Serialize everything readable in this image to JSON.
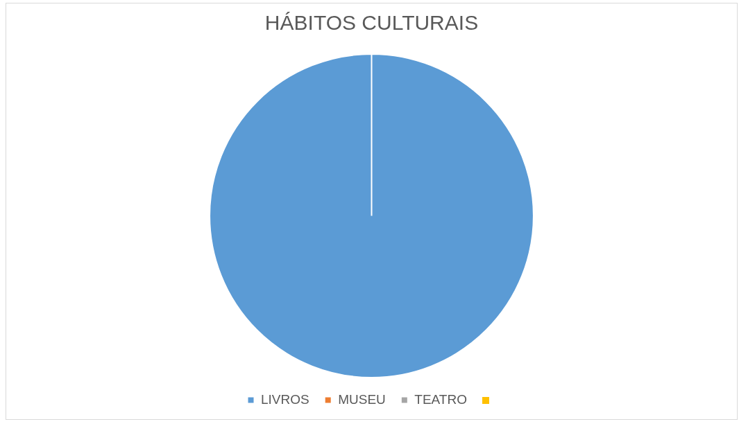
{
  "chart_data": {
    "type": "pie",
    "title": "HÁBITOS CULTURAIS",
    "categories": [
      "LIVROS",
      "MUSEU",
      "TEATRO",
      null
    ],
    "values": [
      100,
      0,
      0,
      0
    ],
    "colors": [
      "#5b9bd5",
      "#ed7d31",
      "#a5a5a5",
      "#ffc000"
    ],
    "legend": "bottom"
  }
}
